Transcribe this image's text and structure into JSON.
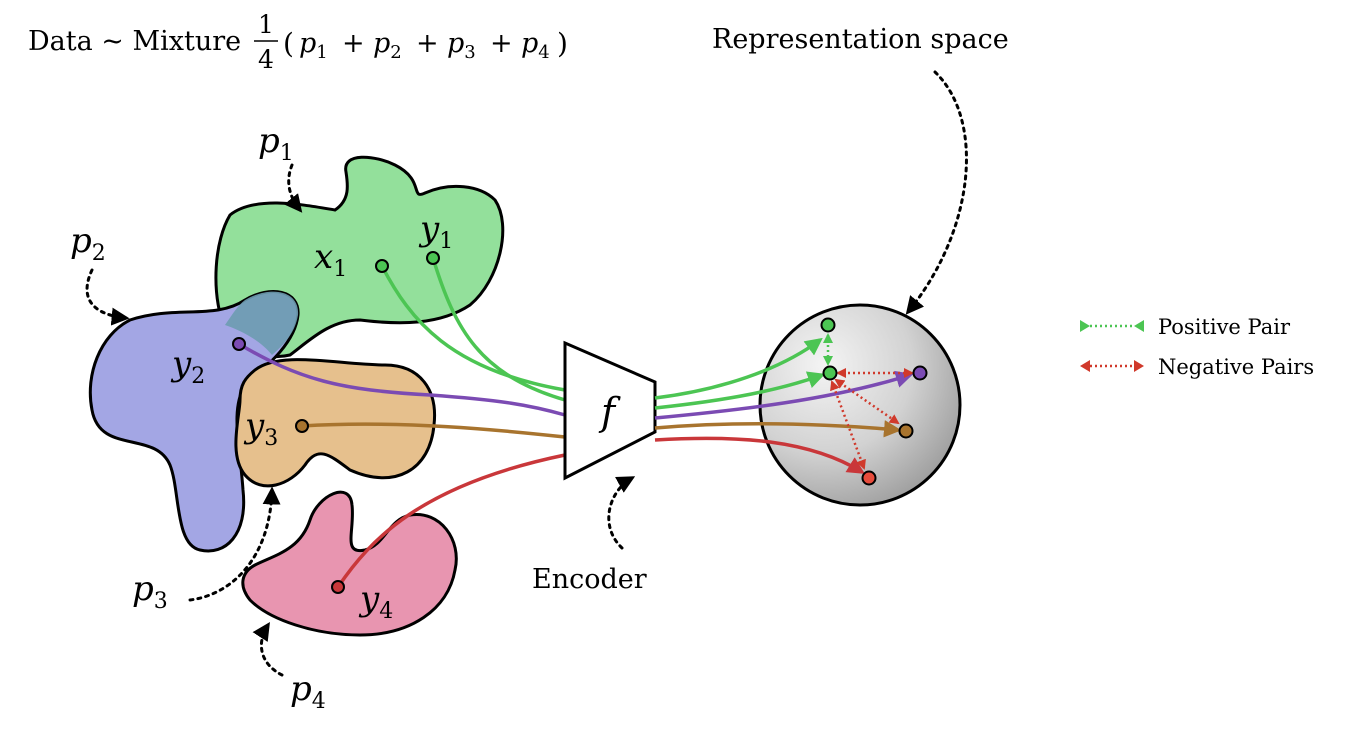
{
  "title": {
    "prefix": "Data ~ Mixture",
    "frac_num": "1",
    "frac_den": "4",
    "expr_open": "(",
    "terms": [
      {
        "sym": "p",
        "sub": "1"
      },
      {
        "sym": "p",
        "sub": "2"
      },
      {
        "sym": "p",
        "sub": "3"
      },
      {
        "sym": "p",
        "sub": "4"
      }
    ],
    "plus": "+",
    "expr_close": ")"
  },
  "representation_label": "Representation space",
  "encoder": {
    "label": "Encoder",
    "symbol": "f"
  },
  "distributions": {
    "p1": {
      "sym": "p",
      "sub": "1",
      "color": "#93e09b"
    },
    "p2": {
      "sym": "p",
      "sub": "2",
      "color": "#a3a6e4"
    },
    "p3": {
      "sym": "p",
      "sub": "3",
      "color": "#e6c08d"
    },
    "p4": {
      "sym": "p",
      "sub": "4",
      "color": "#e895b0"
    }
  },
  "points": {
    "x1": {
      "sym": "x",
      "sub": "1",
      "color": "#4cc553"
    },
    "y1": {
      "sym": "y",
      "sub": "1",
      "color": "#4cc553"
    },
    "y2": {
      "sym": "y",
      "sub": "2",
      "color": "#7b4bb3"
    },
    "y3": {
      "sym": "y",
      "sub": "3",
      "color": "#a8742e"
    },
    "y4": {
      "sym": "y",
      "sub": "4",
      "color": "#c9373a"
    }
  },
  "legend": {
    "positive": {
      "label": "Positive Pair",
      "color": "#4cc553"
    },
    "negative": {
      "label": "Negative Pairs",
      "color": "#d0392b"
    }
  },
  "colors": {
    "green": "#4cc553",
    "purple": "#7b4bb3",
    "brown": "#a8742e",
    "red": "#c9373a"
  }
}
